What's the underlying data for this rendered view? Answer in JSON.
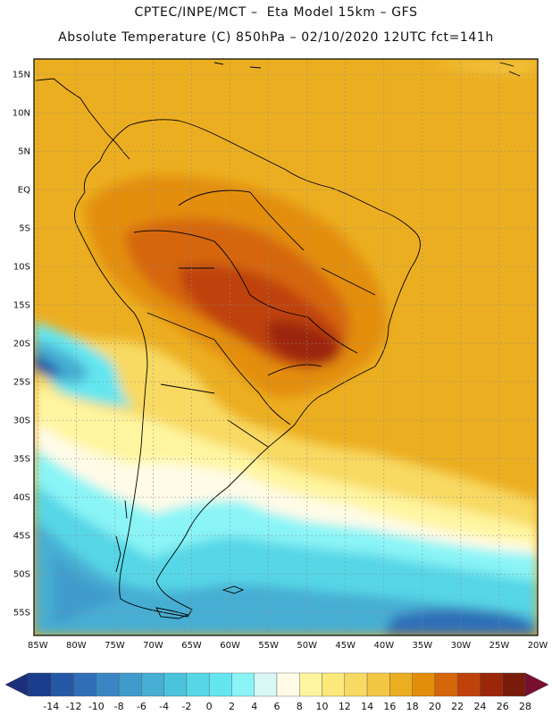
{
  "header": {
    "line1": "CPTEC/INPE/MCT –  Eta Model 15km – GFS",
    "line2": "Absolute Temperature (C) 850hPa – 02/10/2020 12UTC fct=141h"
  },
  "axes": {
    "lat_ticks": [
      "15N",
      "10N",
      "5N",
      "EQ",
      "5S",
      "10S",
      "15S",
      "20S",
      "25S",
      "30S",
      "35S",
      "40S",
      "45S",
      "50S",
      "55S"
    ],
    "lon_ticks": [
      "85W",
      "80W",
      "75W",
      "70W",
      "65W",
      "60W",
      "55W",
      "50W",
      "45W",
      "40W",
      "35W",
      "30W",
      "25W",
      "20W"
    ],
    "lat_range": [
      17,
      -58
    ],
    "lon_range": [
      -85.5,
      -20
    ]
  },
  "colorbar": {
    "labels": [
      "-14",
      "-12",
      "-10",
      "-8",
      "-6",
      "-4",
      "-2",
      "0",
      "2",
      "4",
      "6",
      "8",
      "10",
      "12",
      "14",
      "16",
      "18",
      "20",
      "22",
      "24",
      "26",
      "28"
    ],
    "colors": [
      "#1a3d8c",
      "#2458a6",
      "#2f6fb7",
      "#3a86c4",
      "#3f9bcc",
      "#47aed3",
      "#4cc3dc",
      "#57d6e6",
      "#63e6ef",
      "#8af4f7",
      "#d8f7f5",
      "#fffbe7",
      "#fff5a0",
      "#fce97a",
      "#f8d962",
      "#f2c743",
      "#ecae21",
      "#e38e0a",
      "#d6660a",
      "#bf420b",
      "#9c2608",
      "#7a1c0c"
    ],
    "low_arrow_color": "#1c2f7c",
    "high_arrow_color": "#7a0e2e"
  }
}
